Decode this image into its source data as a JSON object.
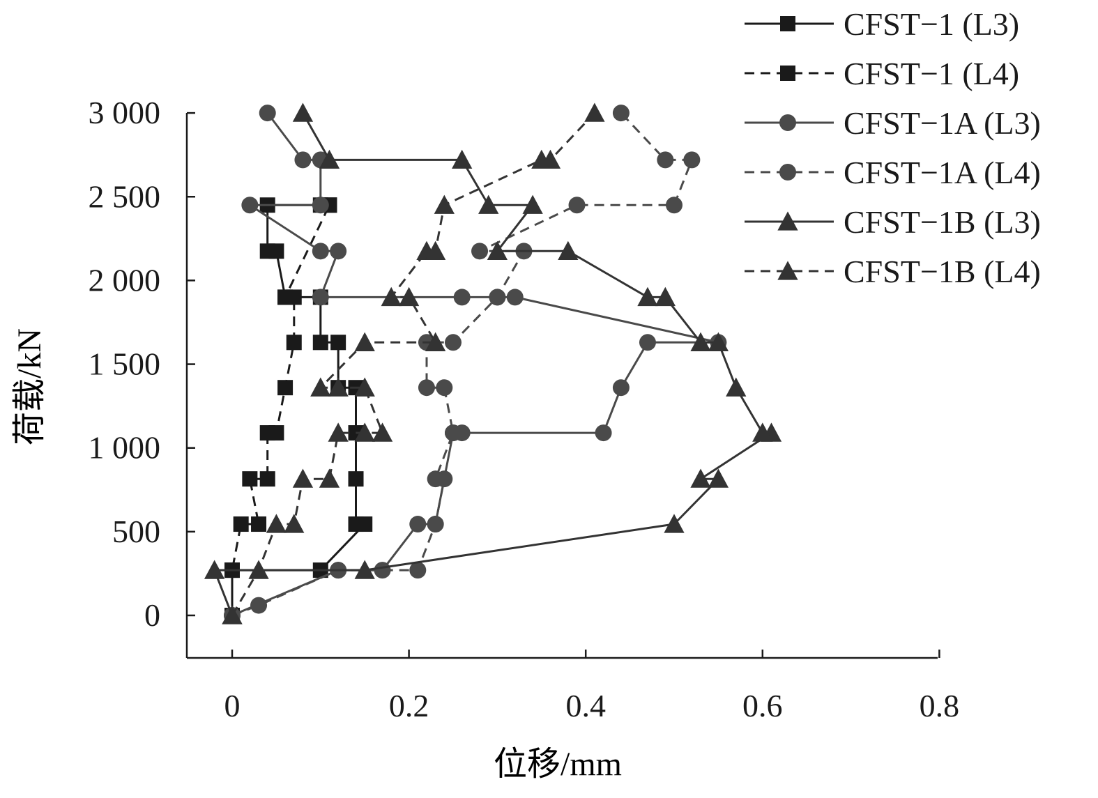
{
  "chart_data": {
    "type": "line",
    "title": "",
    "xlabel": "位移/mm",
    "ylabel": "荷载/kN",
    "xlim": [
      -0.05,
      0.8
    ],
    "ylim": [
      -260,
      3000
    ],
    "xticks": [
      0,
      0.2,
      0.4,
      0.6,
      0.8
    ],
    "xtick_labels": [
      "0",
      "0.2",
      "0.4",
      "0.6",
      "0.8"
    ],
    "yticks": [
      0,
      500,
      1000,
      1500,
      2000,
      2500,
      3000
    ],
    "ytick_labels": [
      "0",
      "500",
      "1 000",
      "1 500",
      "2 000",
      "2 500",
      "3 000"
    ],
    "grid": false,
    "legend_position": "top-right",
    "series": [
      {
        "name": "CFST−1 (L3)",
        "marker": "square",
        "line_style": "solid",
        "color": "#1a1a1a",
        "x": [
          0,
          0,
          0.1,
          0.15,
          0.14,
          0.14,
          0.14,
          0.14,
          0.12,
          0.12,
          0.1,
          0.1,
          0.06,
          0.05,
          0.04,
          0.04,
          0.1
        ],
        "y": [
          0,
          270,
          270,
          545,
          545,
          815,
          1090,
          1360,
          1360,
          1630,
          1630,
          1900,
          1900,
          2175,
          2175,
          2450,
          2450
        ]
      },
      {
        "name": "CFST−1 (L4)",
        "marker": "square",
        "line_style": "dashed",
        "color": "#1a1a1a",
        "x": [
          0,
          0,
          0.01,
          0.03,
          0.02,
          0.04,
          0.04,
          0.05,
          0.06,
          0.07,
          0.07,
          0.06,
          0.11,
          0.11
        ],
        "y": [
          0,
          270,
          545,
          545,
          815,
          815,
          1090,
          1090,
          1360,
          1630,
          1900,
          1900,
          2450,
          2450
        ]
      },
      {
        "name": "CFST−1A (L3)",
        "marker": "circle",
        "line_style": "solid",
        "color": "#4a4a4a",
        "x": [
          0,
          0.12,
          0.17,
          0.21,
          0.23,
          0.25,
          0.26,
          0.42,
          0.44,
          0.47,
          0.55,
          0.32,
          0.3,
          0.26,
          0.1,
          0.12,
          0.1,
          0.02,
          0.1,
          0.1,
          0.08,
          0.04
        ],
        "y": [
          0,
          270,
          270,
          545,
          545,
          1090,
          1090,
          1090,
          1360,
          1630,
          1630,
          1900,
          1900,
          1900,
          1900,
          2175,
          2175,
          2450,
          2450,
          2720,
          2720,
          3000
        ]
      },
      {
        "name": "CFST−1A (L4)",
        "marker": "circle",
        "line_style": "dashed",
        "color": "#4a4a4a",
        "x": [
          0,
          0.03,
          0.12,
          0.21,
          0.23,
          0.24,
          0.23,
          0.25,
          0.24,
          0.22,
          0.22,
          0.25,
          0.3,
          0.33,
          0.28,
          0.39,
          0.5,
          0.52,
          0.49,
          0.44
        ],
        "y": [
          0,
          60,
          270,
          270,
          545,
          815,
          815,
          1090,
          1360,
          1360,
          1630,
          1630,
          1900,
          2175,
          2175,
          2450,
          2450,
          2720,
          2720,
          3000
        ]
      },
      {
        "name": "CFST−1B (L3)",
        "marker": "triangle",
        "line_style": "solid",
        "color": "#333333",
        "x": [
          0,
          -0.02,
          0.15,
          0.5,
          0.55,
          0.53,
          0.61,
          0.6,
          0.57,
          0.55,
          0.53,
          0.49,
          0.47,
          0.38,
          0.3,
          0.34,
          0.29,
          0.26,
          0.11,
          0.08
        ],
        "y": [
          0,
          270,
          270,
          545,
          815,
          815,
          1090,
          1090,
          1360,
          1630,
          1630,
          1900,
          1900,
          2175,
          2175,
          2450,
          2450,
          2720,
          2720,
          3000
        ]
      },
      {
        "name": "CFST−1B (L4)",
        "marker": "triangle",
        "line_style": "dashed",
        "color": "#333333",
        "x": [
          0,
          0.03,
          0.05,
          0.07,
          0.08,
          0.11,
          0.12,
          0.15,
          0.17,
          0.15,
          0.12,
          0.1,
          0.15,
          0.23,
          0.2,
          0.18,
          0.22,
          0.23,
          0.24,
          0.35,
          0.36,
          0.41
        ],
        "y": [
          0,
          270,
          545,
          545,
          815,
          815,
          1090,
          1090,
          1090,
          1360,
          1360,
          1360,
          1630,
          1630,
          1900,
          1900,
          2175,
          2175,
          2450,
          2720,
          2720,
          3000
        ]
      }
    ]
  }
}
